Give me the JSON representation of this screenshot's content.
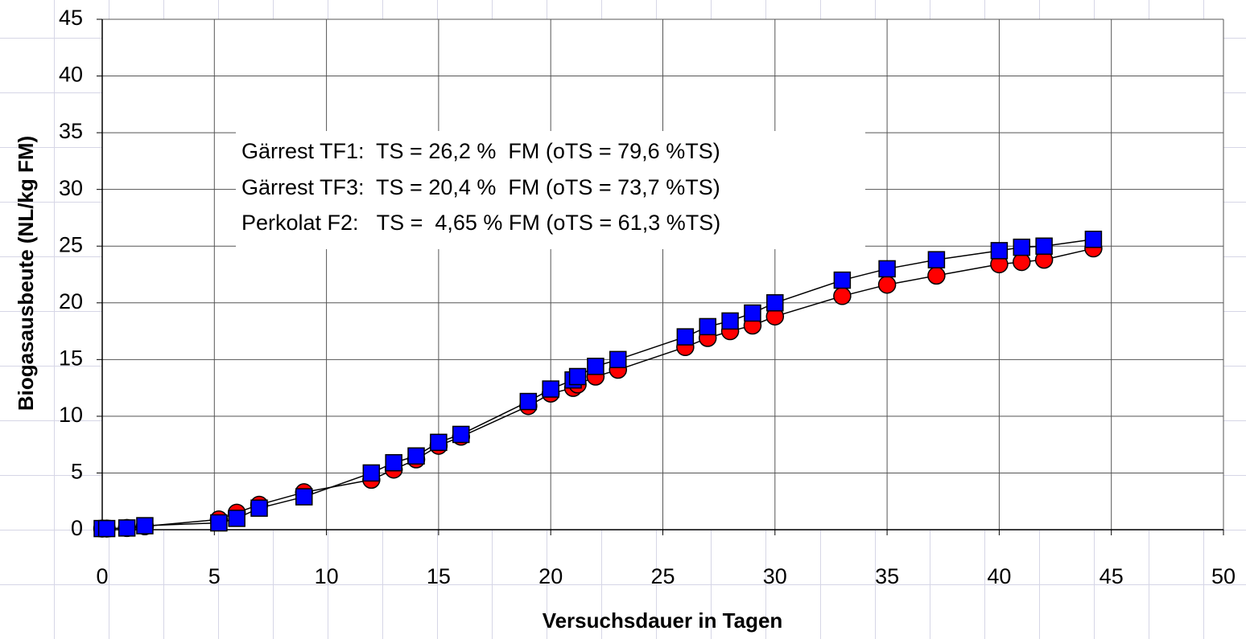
{
  "chart_data": {
    "type": "line",
    "xlabel": "Versuchsdauer in Tagen",
    "ylabel": "Biogasausbeute (NL/kg FM)",
    "annotations": [
      "Gärrest TF1:  TS = 26,2 %  FM (oTS = 79,6 %TS)",
      "Gärrest TF3:  TS = 20,4 %  FM (oTS = 73,7 %TS)",
      "Perkolat F2:   TS =  4,65 % FM (oTS = 61,3 %TS)"
    ],
    "x": [
      0,
      0.2,
      1.1,
      1.9,
      5.2,
      6,
      7,
      9,
      12,
      13,
      14,
      15,
      16,
      19,
      20,
      21,
      21.2,
      22,
      23,
      26,
      27,
      28,
      29,
      30,
      33,
      35,
      37.2,
      40,
      41,
      42,
      44.2
    ],
    "series": [
      {
        "color": "#ff0000",
        "marker": "circle",
        "values": [
          0.1,
          0.1,
          0.15,
          0.3,
          0.9,
          1.5,
          2.2,
          3.3,
          4.4,
          5.3,
          6.2,
          7.4,
          8.2,
          10.9,
          12.0,
          12.5,
          12.8,
          13.5,
          14.1,
          16.1,
          16.9,
          17.5,
          18.0,
          18.8,
          20.6,
          21.6,
          22.4,
          23.4,
          23.6,
          23.8,
          24.8
        ]
      },
      {
        "color": "#0000ff",
        "marker": "square",
        "values": [
          0.1,
          0.1,
          0.15,
          0.35,
          0.6,
          1.0,
          1.9,
          2.9,
          5.0,
          5.9,
          6.5,
          7.7,
          8.4,
          11.3,
          12.4,
          13.2,
          13.5,
          14.4,
          15.0,
          17.0,
          17.9,
          18.4,
          19.1,
          20.0,
          22.0,
          23.0,
          23.8,
          24.6,
          24.9,
          25.0,
          25.6
        ]
      }
    ],
    "xlim": [
      0,
      50
    ],
    "xticks": [
      0,
      5,
      10,
      15,
      20,
      25,
      30,
      35,
      40,
      45,
      50
    ],
    "ylim": [
      0,
      45
    ],
    "yticks": [
      0,
      5,
      10,
      15,
      20,
      25,
      30,
      35,
      40,
      45
    ],
    "grid": true
  }
}
